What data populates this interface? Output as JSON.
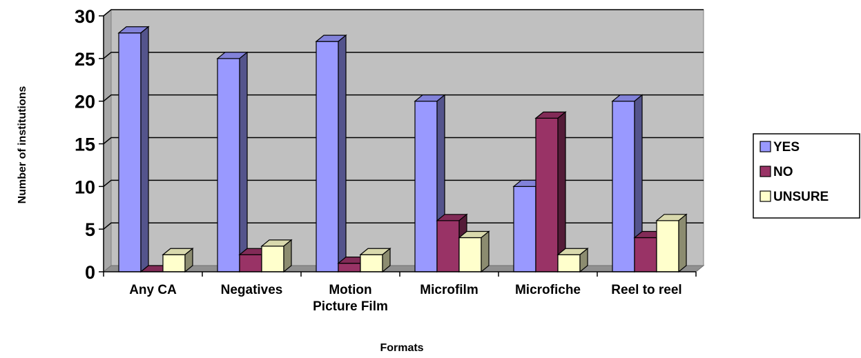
{
  "chart_data": {
    "type": "bar",
    "title": "",
    "xlabel": "Formats",
    "ylabel": "Number of institutions",
    "ylim": [
      0,
      30
    ],
    "yticks": [
      "0",
      "5",
      "10",
      "15",
      "20",
      "25",
      "30"
    ],
    "categories": [
      [
        "Any CA"
      ],
      [
        "Negatives"
      ],
      [
        "Motion",
        "Picture Film"
      ],
      [
        "Microfilm"
      ],
      [
        "Microfiche"
      ],
      [
        "Reel to reel"
      ]
    ],
    "series": [
      {
        "name": "YES",
        "values": [
          28,
          25,
          27,
          20,
          10,
          20
        ],
        "color": "#9999ff"
      },
      {
        "name": "NO",
        "values": [
          0,
          2,
          1,
          6,
          18,
          4
        ],
        "color": "#993366"
      },
      {
        "name": "UNSURE",
        "values": [
          2,
          3,
          2,
          4,
          2,
          6
        ],
        "color": "#ffffcc"
      }
    ],
    "grid": true,
    "legend": "right",
    "plot_background": "#c0c0c0"
  }
}
